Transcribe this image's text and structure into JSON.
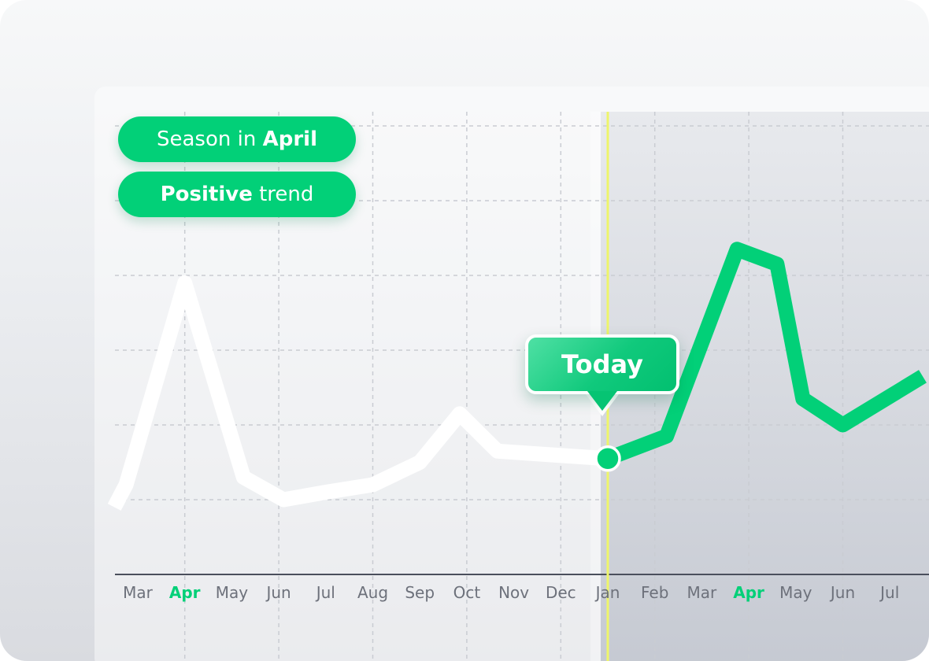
{
  "colors": {
    "accent_green": "#02d078",
    "history_line": "#ffffff",
    "today_line": "#eef56a",
    "axis": "#4a4f5c",
    "tick_label": "#6d717b",
    "tick_highlight": "#02d078"
  },
  "badges": {
    "season_prefix": "Season in",
    "season_value": "April",
    "trend_value": "Positive",
    "trend_suffix": "trend"
  },
  "tooltip": {
    "label": "Today"
  },
  "chart_data": {
    "type": "line",
    "title": "",
    "xlabel": "",
    "ylabel": "",
    "grid": true,
    "categories": [
      "Mar",
      "Apr",
      "May",
      "Jun",
      "Jul",
      "Aug",
      "Sep",
      "Oct",
      "Nov",
      "Dec",
      "Jan",
      "Feb",
      "Mar",
      "Apr",
      "May",
      "Jun",
      "Jul"
    ],
    "highlighted_categories": [
      1,
      13
    ],
    "today_index": 10,
    "ylim": [
      0,
      6
    ],
    "series": [
      {
        "role": "history",
        "x": [
          -0.5,
          -0.25,
          1,
          2.25,
          3.1,
          4,
          5,
          6,
          6.85,
          7.65,
          8.8,
          10
        ],
        "y": [
          0.9,
          1.2,
          3.9,
          1.3,
          1.0,
          1.1,
          1.2,
          1.5,
          2.15,
          1.65,
          1.6,
          1.55
        ]
      },
      {
        "role": "forecast",
        "x": [
          10,
          11.25,
          12.75,
          13.6,
          14.15,
          15.0,
          16.7
        ],
        "y": [
          1.55,
          1.85,
          4.35,
          4.15,
          2.35,
          2.0,
          2.65
        ]
      }
    ]
  }
}
